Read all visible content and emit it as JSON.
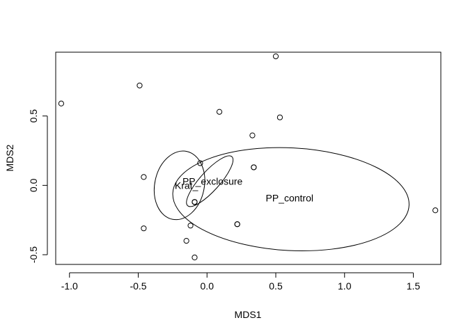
{
  "chart_data": {
    "type": "scatter",
    "title": "",
    "xlabel": "MDS1",
    "ylabel": "MDS2",
    "xlim": [
      -1.1,
      1.7
    ],
    "ylim": [
      -0.57,
      0.96
    ],
    "xticks": [
      -1.0,
      -0.5,
      0.0,
      0.5,
      1.0,
      1.5
    ],
    "xtick_labels": [
      "-1.0",
      "-0.5",
      "0.0",
      "0.5",
      "1.0",
      "1.5"
    ],
    "yticks": [
      -0.5,
      0.0,
      0.5
    ],
    "ytick_labels": [
      "-0.5",
      "0.0",
      "0.5"
    ],
    "grid": false,
    "points": [
      {
        "x": -1.06,
        "y": 0.59
      },
      {
        "x": -0.49,
        "y": 0.72
      },
      {
        "x": 0.5,
        "y": 0.93
      },
      {
        "x": 0.09,
        "y": 0.53
      },
      {
        "x": 0.53,
        "y": 0.49
      },
      {
        "x": 0.33,
        "y": 0.36
      },
      {
        "x": -0.05,
        "y": 0.16
      },
      {
        "x": 0.34,
        "y": 0.13
      },
      {
        "x": 0.34,
        "y": 0.13
      },
      {
        "x": -0.46,
        "y": 0.06
      },
      {
        "x": -0.09,
        "y": -0.12
      },
      {
        "x": -0.09,
        "y": -0.12
      },
      {
        "x": -0.09,
        "y": -0.12
      },
      {
        "x": 0.22,
        "y": -0.28
      },
      {
        "x": 0.22,
        "y": -0.28
      },
      {
        "x": -0.12,
        "y": -0.29
      },
      {
        "x": -0.46,
        "y": -0.31
      },
      {
        "x": -0.15,
        "y": -0.4
      },
      {
        "x": -0.09,
        "y": -0.52
      },
      {
        "x": 1.66,
        "y": -0.18
      }
    ],
    "ellipses": [
      {
        "label": "Krat_",
        "cx": -0.2,
        "cy": 0.0,
        "rx": 0.18,
        "ry": 0.25,
        "angle": -12
      },
      {
        "label": "PP_exclosure",
        "cx": 0.02,
        "cy": 0.03,
        "rx": 0.24,
        "ry": 0.07,
        "angle": 48
      },
      {
        "label": "PP_control",
        "cx": 0.61,
        "cy": -0.1,
        "rx": 0.86,
        "ry": 0.37,
        "angle": -3
      }
    ],
    "ellipse_label_positions": [
      {
        "x": -0.15,
        "y": 0.0
      },
      {
        "x": 0.04,
        "y": 0.03
      },
      {
        "x": 0.6,
        "y": -0.09
      }
    ]
  }
}
